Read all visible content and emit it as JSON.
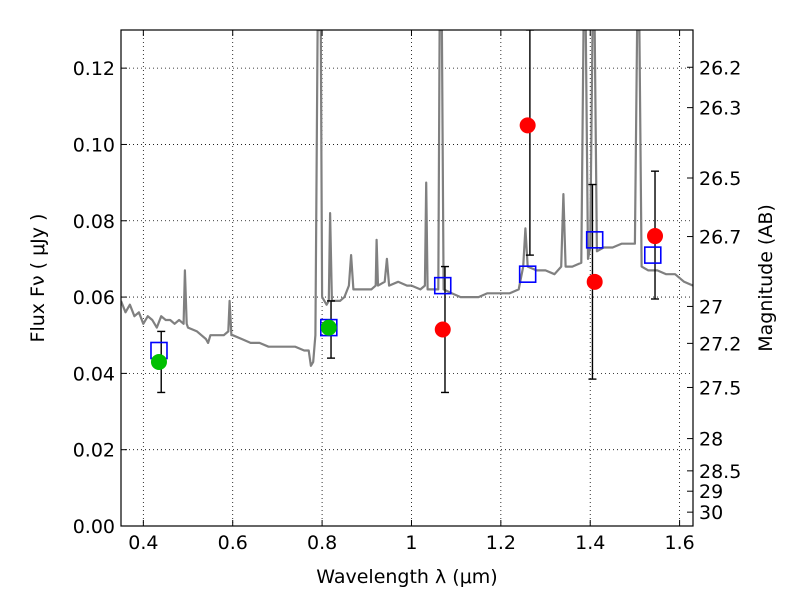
{
  "chart_data": {
    "type": "scatter",
    "xlabel": "Wavelength  λ (μm)",
    "ylabel": "Flux  Fν  ( μJy )",
    "y2label": "Magnitude (AB)",
    "xlim": [
      0.35,
      1.63
    ],
    "ylim": [
      0.0,
      0.13
    ],
    "grid": true,
    "x_ticks": [
      0.4,
      0.6,
      0.8,
      1.0,
      1.2,
      1.4,
      1.6
    ],
    "x_tick_labels": [
      "0.4",
      "0.6",
      "0.8",
      "1",
      "1.2",
      "1.4",
      "1.6"
    ],
    "y_ticks": [
      0.0,
      0.02,
      0.04,
      0.06,
      0.08,
      0.1,
      0.12
    ],
    "y_tick_labels": [
      "0.00",
      "0.02",
      "0.04",
      "0.06",
      "0.08",
      "0.10",
      "0.12"
    ],
    "y2_ticks": [
      26.2,
      26.3,
      26.5,
      26.7,
      27,
      27.2,
      27.5,
      28,
      28.5,
      29,
      30
    ],
    "y2_tick_labels": [
      "26.2",
      "26.3",
      "26.5",
      "26.7",
      "27",
      "27.2",
      "27.5",
      "28",
      "28.5",
      "29",
      "30"
    ],
    "template_spectrum": {
      "color": "#808080",
      "points": [
        [
          0.35,
          0.059
        ],
        [
          0.36,
          0.056
        ],
        [
          0.37,
          0.058
        ],
        [
          0.38,
          0.055
        ],
        [
          0.39,
          0.056
        ],
        [
          0.4,
          0.053
        ],
        [
          0.41,
          0.055
        ],
        [
          0.42,
          0.054
        ],
        [
          0.43,
          0.052
        ],
        [
          0.44,
          0.055
        ],
        [
          0.45,
          0.054
        ],
        [
          0.46,
          0.054
        ],
        [
          0.47,
          0.053
        ],
        [
          0.48,
          0.054
        ],
        [
          0.49,
          0.053
        ],
        [
          0.493,
          0.067
        ],
        [
          0.497,
          0.053
        ],
        [
          0.5,
          0.052
        ],
        [
          0.52,
          0.051
        ],
        [
          0.53,
          0.05
        ],
        [
          0.54,
          0.049
        ],
        [
          0.545,
          0.048
        ],
        [
          0.55,
          0.05
        ],
        [
          0.56,
          0.05
        ],
        [
          0.58,
          0.05
        ],
        [
          0.59,
          0.051
        ],
        [
          0.593,
          0.059
        ],
        [
          0.597,
          0.05
        ],
        [
          0.6,
          0.05
        ],
        [
          0.62,
          0.049
        ],
        [
          0.64,
          0.048
        ],
        [
          0.66,
          0.048
        ],
        [
          0.68,
          0.047
        ],
        [
          0.7,
          0.047
        ],
        [
          0.72,
          0.047
        ],
        [
          0.74,
          0.047
        ],
        [
          0.76,
          0.046
        ],
        [
          0.77,
          0.046
        ],
        [
          0.775,
          0.042
        ],
        [
          0.78,
          0.043
        ],
        [
          0.785,
          0.05
        ],
        [
          0.79,
          0.13
        ],
        [
          0.797,
          0.13
        ],
        [
          0.8,
          0.06
        ],
        [
          0.81,
          0.058
        ],
        [
          0.815,
          0.059
        ],
        [
          0.818,
          0.082
        ],
        [
          0.822,
          0.059
        ],
        [
          0.83,
          0.059
        ],
        [
          0.84,
          0.059
        ],
        [
          0.85,
          0.06
        ],
        [
          0.86,
          0.063
        ],
        [
          0.865,
          0.071
        ],
        [
          0.87,
          0.062
        ],
        [
          0.88,
          0.062
        ],
        [
          0.9,
          0.062
        ],
        [
          0.91,
          0.062
        ],
        [
          0.92,
          0.063
        ],
        [
          0.922,
          0.075
        ],
        [
          0.925,
          0.063
        ],
        [
          0.94,
          0.064
        ],
        [
          0.945,
          0.07
        ],
        [
          0.95,
          0.063
        ],
        [
          0.97,
          0.064
        ],
        [
          0.99,
          0.063
        ],
        [
          1.0,
          0.063
        ],
        [
          1.02,
          0.062
        ],
        [
          1.03,
          0.063
        ],
        [
          1.033,
          0.09
        ],
        [
          1.036,
          0.062
        ],
        [
          1.05,
          0.062
        ],
        [
          1.06,
          0.062
        ],
        [
          1.063,
          0.13
        ],
        [
          1.068,
          0.13
        ],
        [
          1.072,
          0.062
        ],
        [
          1.09,
          0.061
        ],
        [
          1.11,
          0.06
        ],
        [
          1.13,
          0.06
        ],
        [
          1.15,
          0.06
        ],
        [
          1.17,
          0.061
        ],
        [
          1.2,
          0.061
        ],
        [
          1.22,
          0.061
        ],
        [
          1.24,
          0.062
        ],
        [
          1.25,
          0.068
        ],
        [
          1.255,
          0.078
        ],
        [
          1.26,
          0.068
        ],
        [
          1.28,
          0.067
        ],
        [
          1.3,
          0.067
        ],
        [
          1.32,
          0.066
        ],
        [
          1.335,
          0.068
        ],
        [
          1.34,
          0.087
        ],
        [
          1.345,
          0.068
        ],
        [
          1.36,
          0.068
        ],
        [
          1.38,
          0.069
        ],
        [
          1.385,
          0.13
        ],
        [
          1.39,
          0.13
        ],
        [
          1.395,
          0.07
        ],
        [
          1.4,
          0.073
        ],
        [
          1.405,
          0.13
        ],
        [
          1.41,
          0.13
        ],
        [
          1.415,
          0.072
        ],
        [
          1.43,
          0.073
        ],
        [
          1.45,
          0.073
        ],
        [
          1.47,
          0.074
        ],
        [
          1.49,
          0.074
        ],
        [
          1.5,
          0.074
        ],
        [
          1.505,
          0.13
        ],
        [
          1.51,
          0.13
        ],
        [
          1.515,
          0.068
        ],
        [
          1.53,
          0.067
        ],
        [
          1.55,
          0.067
        ],
        [
          1.57,
          0.066
        ],
        [
          1.59,
          0.066
        ],
        [
          1.61,
          0.064
        ],
        [
          1.63,
          0.063
        ]
      ]
    },
    "model_photometry": {
      "color": "#0000ff",
      "marker": "open-square",
      "points": [
        [
          0.435,
          0.046
        ],
        [
          0.815,
          0.052
        ],
        [
          1.07,
          0.063
        ],
        [
          1.26,
          0.066
        ],
        [
          1.41,
          0.075
        ],
        [
          1.54,
          0.071
        ]
      ]
    },
    "detections": {
      "color": "#00c000",
      "marker": "filled-circle",
      "points": [
        [
          0.435,
          0.043
        ],
        [
          0.815,
          0.052
        ]
      ]
    },
    "measurements": {
      "color": "#ff0000",
      "marker": "filled-circle",
      "points": [
        [
          1.07,
          0.0515
        ],
        [
          1.26,
          0.105
        ],
        [
          1.41,
          0.064
        ],
        [
          1.545,
          0.076
        ]
      ]
    },
    "error_bars": [
      {
        "x": 0.44,
        "low": 0.035,
        "high": 0.051
      },
      {
        "x": 0.82,
        "low": 0.044,
        "high": 0.059
      },
      {
        "x": 1.075,
        "low": 0.035,
        "high": 0.068
      },
      {
        "x": 1.265,
        "low": 0.071,
        "high": 0.13
      },
      {
        "x": 1.405,
        "low": 0.0385,
        "high": 0.0895
      },
      {
        "x": 1.545,
        "low": 0.0595,
        "high": 0.093
      }
    ]
  }
}
